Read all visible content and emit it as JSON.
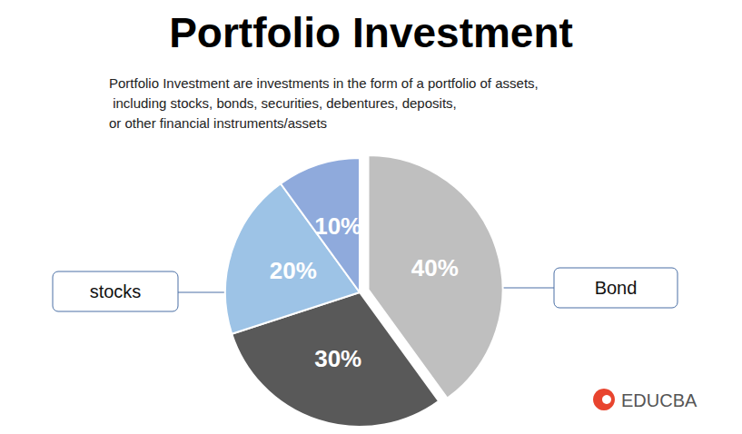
{
  "chart_data": {
    "type": "pie",
    "title": "Portfolio Investment",
    "subtitle": "Portfolio Investment are investments in the form of a portfolio of assets,\n including stocks, bonds, securities, debentures, deposits,\nor other financial instruments/assets",
    "categories": [
      null,
      null,
      null,
      null
    ],
    "values": [
      40,
      30,
      20,
      10
    ],
    "value_labels": [
      "40%",
      "30%",
      "20%",
      "10%"
    ],
    "colors": [
      "#bfbfbf",
      "#595959",
      "#9dc3e6",
      "#8faadc"
    ],
    "data_labels": true,
    "annotations": [
      "stocks",
      "Bond",
      "EDUCBA"
    ]
  }
}
